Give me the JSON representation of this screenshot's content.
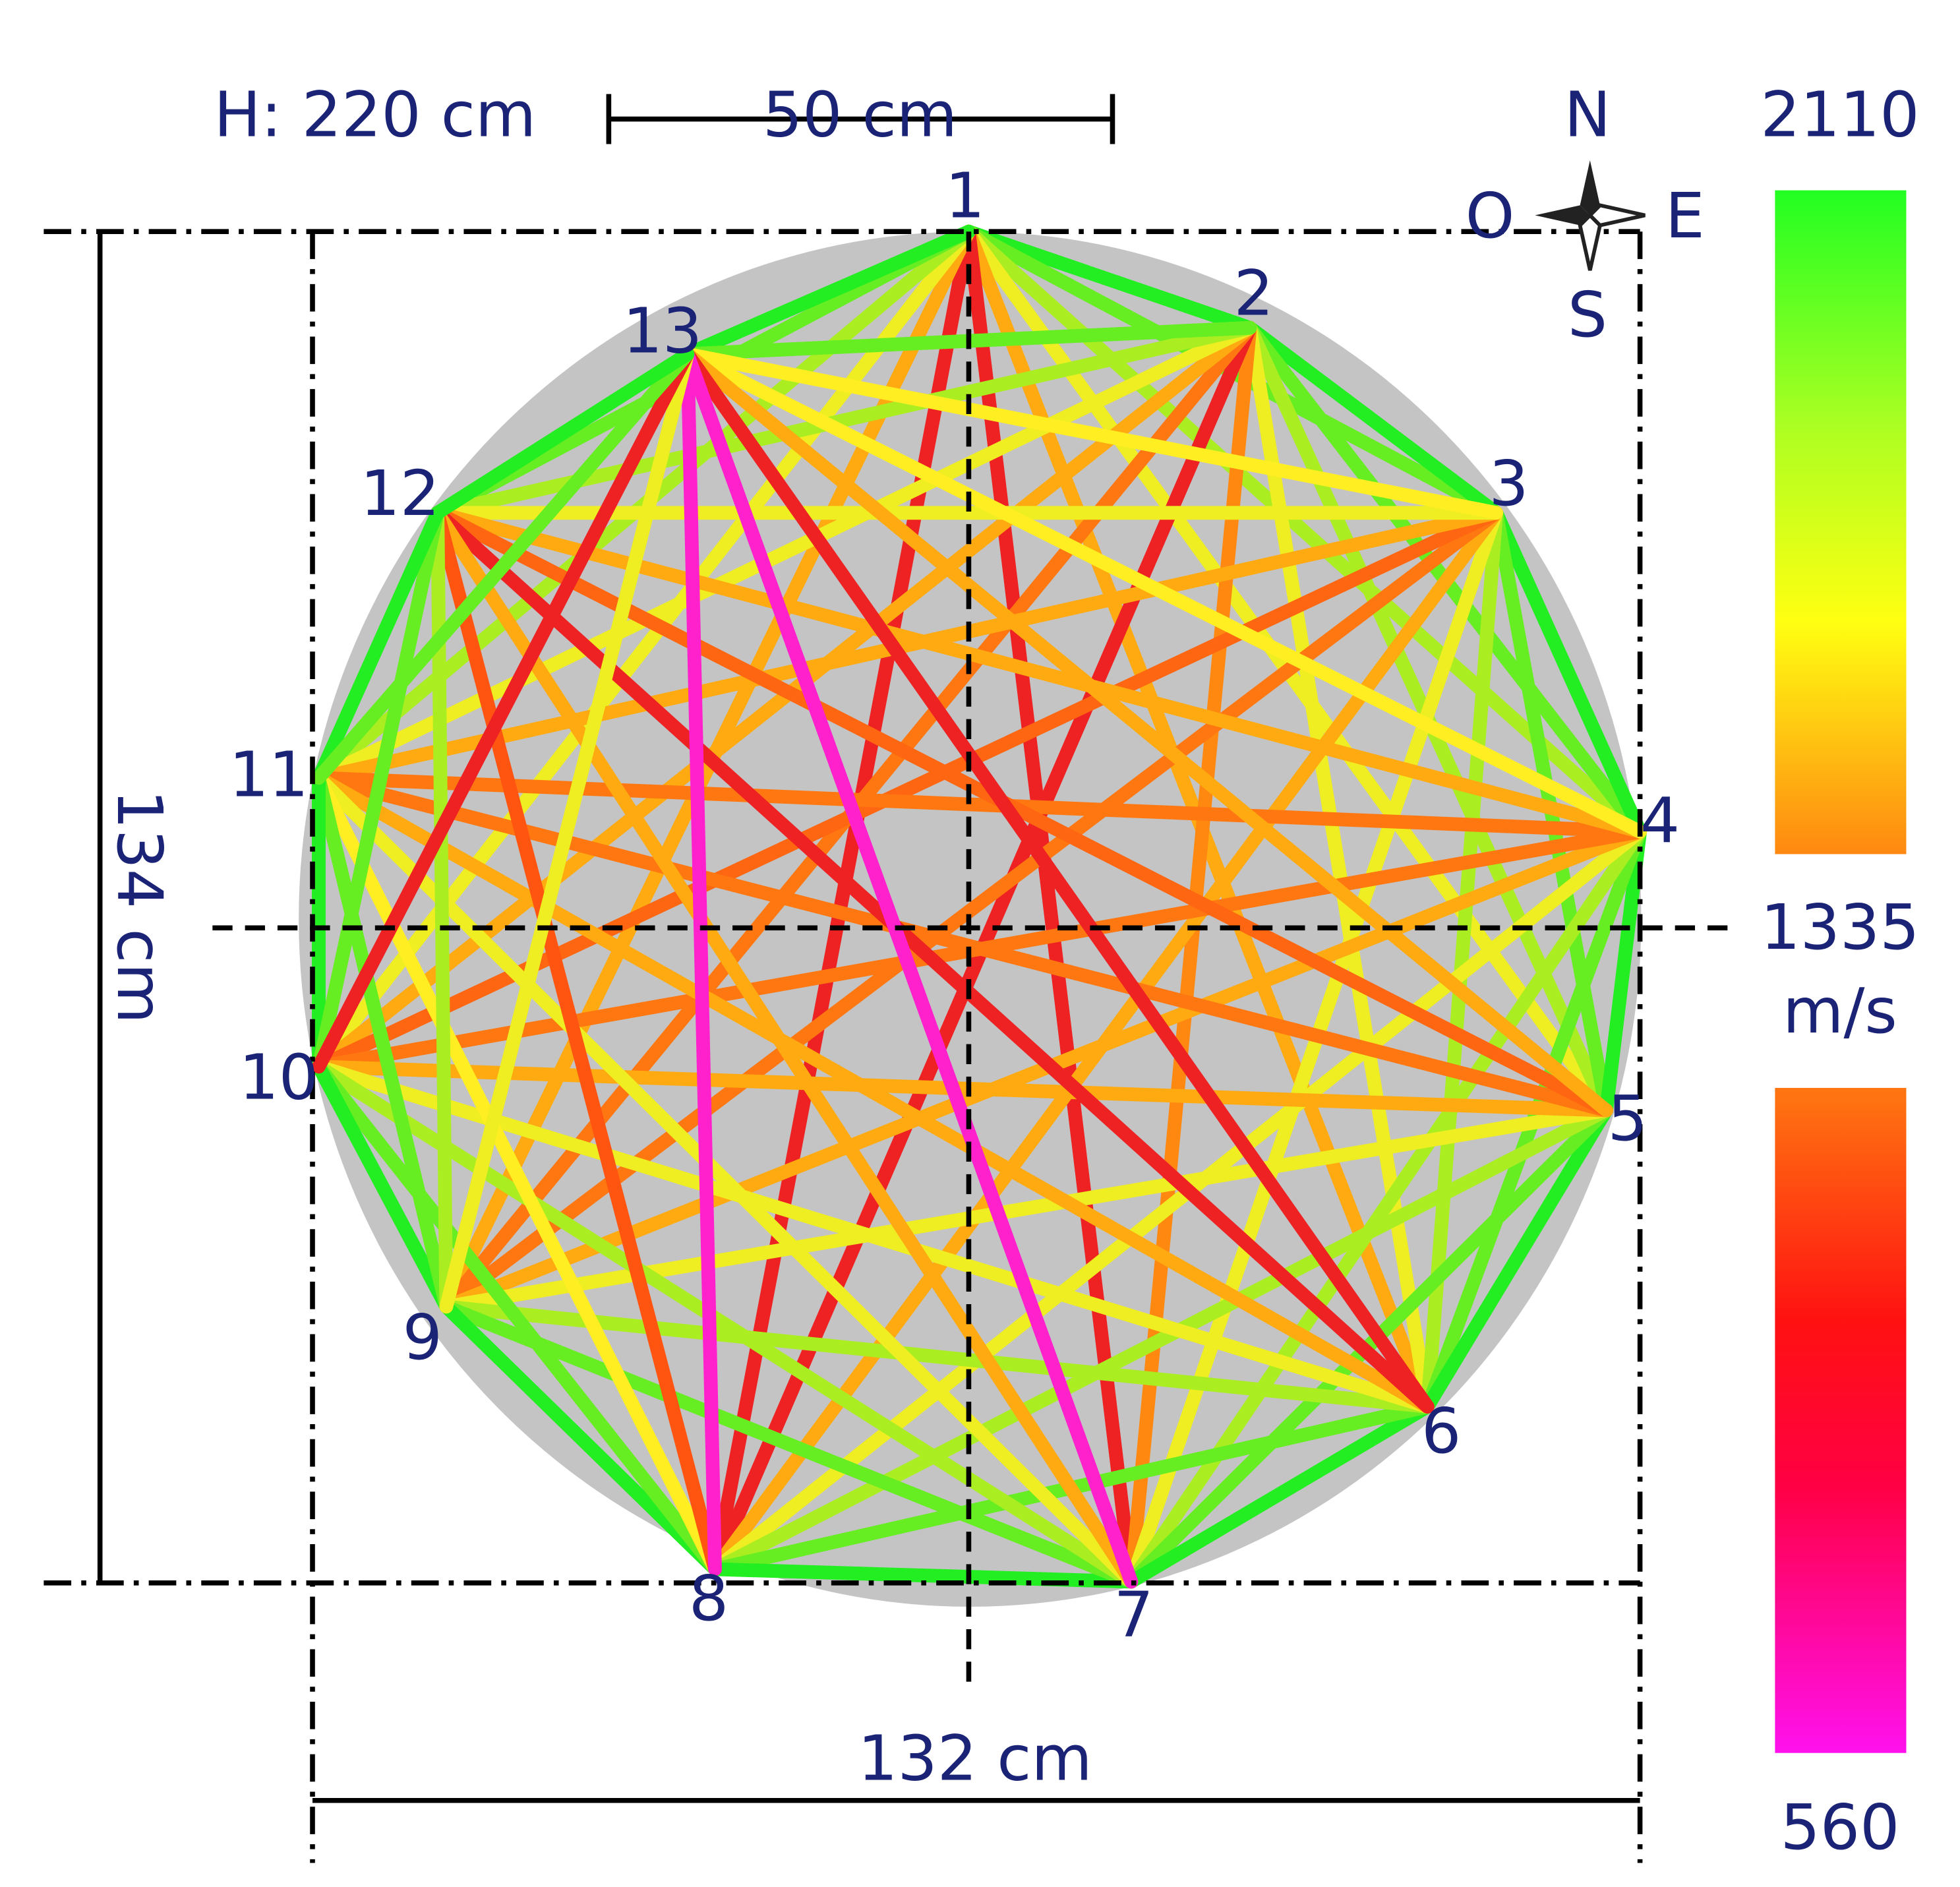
{
  "header": {
    "height_label": "H: 220 cm",
    "scale_bar": "50 cm"
  },
  "compass": {
    "north": "N",
    "west": "O",
    "east": "E",
    "south": "S"
  },
  "dimensions": {
    "height": "134 cm",
    "width": "132 cm"
  },
  "nodes": [
    {
      "label": "1"
    },
    {
      "label": "2"
    },
    {
      "label": "3"
    },
    {
      "label": "4"
    },
    {
      "label": "5"
    },
    {
      "label": "6"
    },
    {
      "label": "7"
    },
    {
      "label": "8"
    },
    {
      "label": "9"
    },
    {
      "label": "10"
    },
    {
      "label": "11"
    },
    {
      "label": "12"
    },
    {
      "label": "13"
    }
  ],
  "legend": {
    "max": "2110",
    "mid": "1335",
    "unit": "m/s",
    "min": "560"
  }
}
